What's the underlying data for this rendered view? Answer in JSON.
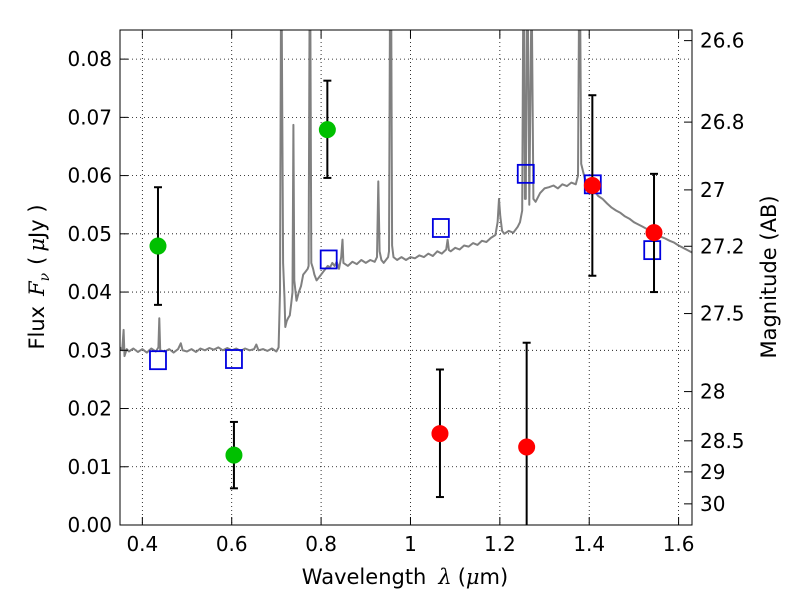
{
  "chart_data": {
    "type": "scatter",
    "xlabel_prefix": "Wavelength",
    "xlabel_symbol": "λ",
    "xlabel_unit_open": "(",
    "xlabel_unit_mu": "μ",
    "xlabel_unit_rest": "m)",
    "ylabel_prefix": "Flux",
    "ylabel_symbol": "F",
    "ylabel_sub": "ν",
    "ylabel_unit_open": "(",
    "ylabel_unit_mu": "μ",
    "ylabel_unit_rest": "Jy )",
    "y2label": "Magnitude (AB)",
    "xlim": [
      0.35,
      1.63
    ],
    "ylim": [
      0.0,
      0.085
    ],
    "xticks": [
      0.4,
      0.6,
      0.8,
      1.0,
      1.2,
      1.4,
      1.6
    ],
    "xtick_labels": [
      "0.4",
      "0.6",
      "0.8",
      "1",
      "1.2",
      "1.4",
      "1.6"
    ],
    "yticks": [
      0.0,
      0.01,
      0.02,
      0.03,
      0.04,
      0.05,
      0.06,
      0.07,
      0.08
    ],
    "ytick_labels": [
      "0.00",
      "0.01",
      "0.02",
      "0.03",
      "0.04",
      "0.05",
      "0.06",
      "0.07",
      "0.08"
    ],
    "mag_ticks": [
      26.6,
      26.8,
      27.0,
      27.2,
      27.5,
      28.0,
      28.5,
      29.0,
      30.0
    ],
    "mag_tick_labels": [
      "26.6",
      "26.8",
      "27",
      "27.2",
      "27.5",
      "28",
      "28.5",
      "29",
      "30"
    ],
    "grid": true,
    "colors": {
      "spectrum": "#808080",
      "green": "#00c000",
      "red": "#ff0000",
      "model": "#0000e0",
      "errorbar": "#000000"
    },
    "spectrum": [
      [
        0.35,
        0.0305
      ],
      [
        0.355,
        0.03
      ],
      [
        0.358,
        0.0335
      ],
      [
        0.36,
        0.029
      ],
      [
        0.365,
        0.0302
      ],
      [
        0.37,
        0.0298
      ],
      [
        0.38,
        0.0303
      ],
      [
        0.39,
        0.0297
      ],
      [
        0.4,
        0.0302
      ],
      [
        0.41,
        0.0296
      ],
      [
        0.42,
        0.0303
      ],
      [
        0.43,
        0.0298
      ],
      [
        0.436,
        0.0305
      ],
      [
        0.438,
        0.0355
      ],
      [
        0.44,
        0.03
      ],
      [
        0.45,
        0.0298
      ],
      [
        0.46,
        0.0302
      ],
      [
        0.47,
        0.0296
      ],
      [
        0.48,
        0.0302
      ],
      [
        0.486,
        0.0312
      ],
      [
        0.49,
        0.03
      ],
      [
        0.5,
        0.0298
      ],
      [
        0.51,
        0.0302
      ],
      [
        0.52,
        0.0297
      ],
      [
        0.53,
        0.0303
      ],
      [
        0.54,
        0.03
      ],
      [
        0.55,
        0.0304
      ],
      [
        0.56,
        0.0301
      ],
      [
        0.57,
        0.0305
      ],
      [
        0.58,
        0.03
      ],
      [
        0.59,
        0.0304
      ],
      [
        0.6,
        0.03
      ],
      [
        0.61,
        0.0303
      ],
      [
        0.62,
        0.0299
      ],
      [
        0.63,
        0.0303
      ],
      [
        0.64,
        0.03
      ],
      [
        0.65,
        0.0302
      ],
      [
        0.655,
        0.031
      ],
      [
        0.66,
        0.03
      ],
      [
        0.67,
        0.0302
      ],
      [
        0.68,
        0.0299
      ],
      [
        0.69,
        0.0303
      ],
      [
        0.7,
        0.0298
      ],
      [
        0.705,
        0.0305
      ],
      [
        0.708,
        0.04
      ],
      [
        0.71,
        0.085
      ],
      [
        0.712,
        0.085
      ],
      [
        0.715,
        0.045
      ],
      [
        0.718,
        0.039
      ],
      [
        0.72,
        0.034
      ],
      [
        0.723,
        0.035
      ],
      [
        0.726,
        0.0355
      ],
      [
        0.73,
        0.036
      ],
      [
        0.733,
        0.038
      ],
      [
        0.736,
        0.04
      ],
      [
        0.738,
        0.0687
      ],
      [
        0.74,
        0.042
      ],
      [
        0.745,
        0.0385
      ],
      [
        0.75,
        0.04
      ],
      [
        0.755,
        0.041
      ],
      [
        0.76,
        0.043
      ],
      [
        0.765,
        0.0435
      ],
      [
        0.77,
        0.044
      ],
      [
        0.772,
        0.0445
      ],
      [
        0.774,
        0.085
      ],
      [
        0.776,
        0.085
      ],
      [
        0.778,
        0.045
      ],
      [
        0.782,
        0.044
      ],
      [
        0.785,
        0.043
      ],
      [
        0.79,
        0.042
      ],
      [
        0.795,
        0.0425
      ],
      [
        0.8,
        0.043
      ],
      [
        0.805,
        0.0435
      ],
      [
        0.81,
        0.044
      ],
      [
        0.815,
        0.0445
      ],
      [
        0.82,
        0.0442
      ],
      [
        0.825,
        0.045
      ],
      [
        0.83,
        0.0445
      ],
      [
        0.835,
        0.0452
      ],
      [
        0.84,
        0.044
      ],
      [
        0.845,
        0.046
      ],
      [
        0.848,
        0.049
      ],
      [
        0.85,
        0.045
      ],
      [
        0.86,
        0.0445
      ],
      [
        0.87,
        0.0452
      ],
      [
        0.88,
        0.0448
      ],
      [
        0.89,
        0.0455
      ],
      [
        0.9,
        0.045
      ],
      [
        0.91,
        0.0455
      ],
      [
        0.92,
        0.0452
      ],
      [
        0.925,
        0.046
      ],
      [
        0.928,
        0.059
      ],
      [
        0.931,
        0.047
      ],
      [
        0.935,
        0.0455
      ],
      [
        0.94,
        0.045
      ],
      [
        0.945,
        0.0455
      ],
      [
        0.95,
        0.046
      ],
      [
        0.952,
        0.047
      ],
      [
        0.954,
        0.085
      ],
      [
        0.957,
        0.085
      ],
      [
        0.959,
        0.048
      ],
      [
        0.962,
        0.046
      ],
      [
        0.97,
        0.0455
      ],
      [
        0.98,
        0.046
      ],
      [
        0.99,
        0.0455
      ],
      [
        1.0,
        0.046
      ],
      [
        1.01,
        0.0458
      ],
      [
        1.02,
        0.0463
      ],
      [
        1.03,
        0.046
      ],
      [
        1.04,
        0.0466
      ],
      [
        1.05,
        0.0462
      ],
      [
        1.06,
        0.047
      ],
      [
        1.07,
        0.0466
      ],
      [
        1.08,
        0.0473
      ],
      [
        1.083,
        0.049
      ],
      [
        1.086,
        0.0472
      ],
      [
        1.09,
        0.047
      ],
      [
        1.1,
        0.0476
      ],
      [
        1.11,
        0.0473
      ],
      [
        1.12,
        0.048
      ],
      [
        1.13,
        0.0478
      ],
      [
        1.14,
        0.0484
      ],
      [
        1.15,
        0.0481
      ],
      [
        1.16,
        0.0488
      ],
      [
        1.17,
        0.0486
      ],
      [
        1.18,
        0.0493
      ],
      [
        1.19,
        0.0498
      ],
      [
        1.195,
        0.052
      ],
      [
        1.198,
        0.056
      ],
      [
        1.201,
        0.053
      ],
      [
        1.205,
        0.0505
      ],
      [
        1.21,
        0.05
      ],
      [
        1.22,
        0.0505
      ],
      [
        1.23,
        0.0502
      ],
      [
        1.24,
        0.0512
      ],
      [
        1.245,
        0.052
      ],
      [
        1.25,
        0.054
      ],
      [
        1.252,
        0.085
      ],
      [
        1.254,
        0.085
      ],
      [
        1.256,
        0.056
      ],
      [
        1.258,
        0.056
      ],
      [
        1.26,
        0.085
      ],
      [
        1.263,
        0.085
      ],
      [
        1.266,
        0.055
      ],
      [
        1.27,
        0.085
      ],
      [
        1.272,
        0.085
      ],
      [
        1.275,
        0.056
      ],
      [
        1.28,
        0.0555
      ],
      [
        1.29,
        0.057
      ],
      [
        1.3,
        0.0578
      ],
      [
        1.31,
        0.058
      ],
      [
        1.32,
        0.0583
      ],
      [
        1.33,
        0.0578
      ],
      [
        1.34,
        0.0585
      ],
      [
        1.35,
        0.0582
      ],
      [
        1.36,
        0.0588
      ],
      [
        1.37,
        0.0585
      ],
      [
        1.375,
        0.06
      ],
      [
        1.377,
        0.085
      ],
      [
        1.38,
        0.085
      ],
      [
        1.382,
        0.062
      ],
      [
        1.39,
        0.0595
      ],
      [
        1.4,
        0.0585
      ],
      [
        1.41,
        0.0575
      ],
      [
        1.42,
        0.0565
      ],
      [
        1.43,
        0.056
      ],
      [
        1.44,
        0.0552
      ],
      [
        1.45,
        0.0545
      ],
      [
        1.46,
        0.054
      ],
      [
        1.47,
        0.0536
      ],
      [
        1.48,
        0.053
      ],
      [
        1.49,
        0.0526
      ],
      [
        1.5,
        0.052
      ],
      [
        1.51,
        0.0516
      ],
      [
        1.52,
        0.0512
      ],
      [
        1.53,
        0.0508
      ],
      [
        1.54,
        0.0505
      ],
      [
        1.55,
        0.05
      ],
      [
        1.56,
        0.0495
      ],
      [
        1.57,
        0.0492
      ],
      [
        1.58,
        0.0488
      ],
      [
        1.59,
        0.0485
      ],
      [
        1.6,
        0.048
      ],
      [
        1.61,
        0.0476
      ],
      [
        1.62,
        0.0472
      ],
      [
        1.63,
        0.0468
      ]
    ],
    "model_points": [
      {
        "x": 0.435,
        "y": 0.0283
      },
      {
        "x": 0.605,
        "y": 0.0285
      },
      {
        "x": 0.817,
        "y": 0.0456
      },
      {
        "x": 1.068,
        "y": 0.051
      },
      {
        "x": 1.258,
        "y": 0.0603
      },
      {
        "x": 1.408,
        "y": 0.0585
      },
      {
        "x": 1.541,
        "y": 0.0472
      }
    ],
    "green_points": [
      {
        "x": 0.435,
        "y": 0.0479,
        "ylo": 0.0378,
        "yhi": 0.058
      },
      {
        "x": 0.605,
        "y": 0.012,
        "ylo": 0.0063,
        "yhi": 0.0177
      },
      {
        "x": 0.814,
        "y": 0.0679,
        "ylo": 0.0596,
        "yhi": 0.0763
      }
    ],
    "red_points": [
      {
        "x": 1.066,
        "y": 0.0157,
        "ylo": 0.0048,
        "yhi": 0.0267
      },
      {
        "x": 1.26,
        "y": 0.0134,
        "ylo": 0.0,
        "yhi": 0.0313
      },
      {
        "x": 1.407,
        "y": 0.0583,
        "ylo": 0.0428,
        "yhi": 0.0738
      },
      {
        "x": 1.545,
        "y": 0.0502,
        "ylo": 0.04,
        "yhi": 0.0603
      }
    ]
  }
}
